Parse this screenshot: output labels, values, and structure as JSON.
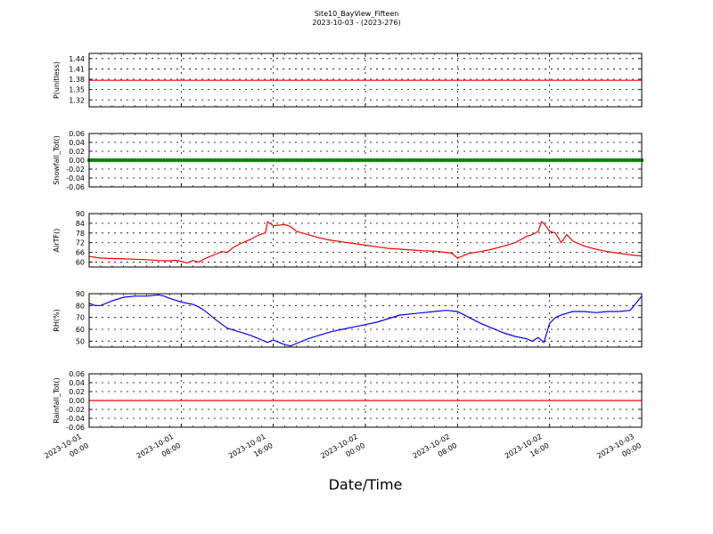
{
  "title": "Site10_BayView_Fifteen",
  "subtitle": "2023-10-03 - (2023-276)",
  "xlabel": "Date/Time",
  "x_ticks": [
    {
      "line1": "2023-10-01",
      "line2": "00:00",
      "hour": 0
    },
    {
      "line1": "2023-10-01",
      "line2": "08:00",
      "hour": 8
    },
    {
      "line1": "2023-10-01",
      "line2": "16:00",
      "hour": 16
    },
    {
      "line1": "2023-10-02",
      "line2": "00:00",
      "hour": 24
    },
    {
      "line1": "2023-10-02",
      "line2": "08:00",
      "hour": 32
    },
    {
      "line1": "2023-10-02",
      "line2": "16:00",
      "hour": 40
    },
    {
      "line1": "2023-10-03",
      "line2": "00:00",
      "hour": 48
    }
  ],
  "chart_data": [
    {
      "type": "line",
      "ylabel": "P(unitless)",
      "ylim": [
        1.3,
        1.455
      ],
      "yticks": [
        "1.44",
        "1.41",
        "1.38",
        "1.35",
        "1.32"
      ],
      "ytick_values": [
        1.44,
        1.41,
        1.38,
        1.35,
        1.32
      ],
      "color": "#ff0000",
      "marker": false,
      "grid": true,
      "x": [
        0,
        48
      ],
      "y": [
        1.377,
        1.377
      ]
    },
    {
      "type": "line",
      "ylabel": "Snowfall_Tot()",
      "ylim": [
        -0.06,
        0.06
      ],
      "yticks": [
        "0.06",
        "0.04",
        "0.02",
        "0.00",
        "-0.02",
        "-0.04",
        "-0.06"
      ],
      "ytick_values": [
        0.06,
        0.04,
        0.02,
        0.0,
        -0.02,
        -0.04,
        -0.06
      ],
      "color": "#008000",
      "marker": true,
      "grid": true,
      "x": [
        0,
        48
      ],
      "y": [
        0.0,
        0.0
      ]
    },
    {
      "type": "line",
      "ylabel": "AirTF()",
      "ylim": [
        57,
        90
      ],
      "yticks": [
        "90",
        "84",
        "78",
        "72",
        "66",
        "60"
      ],
      "ytick_values": [
        90,
        84,
        78,
        72,
        66,
        60
      ],
      "color": "#ff0000",
      "marker": false,
      "grid": true,
      "x": [
        0,
        1,
        2,
        3,
        4,
        5,
        6,
        7,
        7.5,
        8,
        8.5,
        9,
        9.5,
        10,
        10.5,
        11,
        11.5,
        12,
        12.5,
        13,
        13.5,
        14,
        14.5,
        15,
        15.3,
        15.5,
        16,
        17,
        17.5,
        18,
        19,
        20,
        21,
        22,
        23,
        24,
        25,
        26,
        27,
        28,
        29,
        30,
        31,
        31.5,
        32,
        32.5,
        33,
        34,
        35,
        36,
        37,
        37.5,
        38,
        38.5,
        39,
        39.3,
        39.5,
        40,
        40.5,
        41,
        41.5,
        42,
        43,
        44,
        45,
        46,
        47,
        48
      ],
      "y": [
        63.5,
        62.5,
        62.2,
        62,
        61.8,
        61.5,
        61,
        60.8,
        61.2,
        60.5,
        59.5,
        61,
        60,
        62,
        63.5,
        65,
        66.5,
        66,
        69,
        71,
        72.5,
        74,
        76,
        77.5,
        78,
        85,
        82.5,
        83.2,
        82,
        79,
        77,
        75,
        73.5,
        72.5,
        71.5,
        70.5,
        69.5,
        68.5,
        68,
        67.5,
        67,
        66.8,
        66,
        65.5,
        62.5,
        64,
        65.5,
        66.5,
        68,
        70,
        72,
        74,
        76,
        77,
        79,
        85,
        84,
        79,
        78,
        72,
        77,
        73,
        70,
        68,
        66.5,
        65.5,
        64.5,
        63.8
      ]
    },
    {
      "type": "line",
      "ylabel": "RH(%)",
      "ylim": [
        45,
        90
      ],
      "yticks": [
        "90",
        "80",
        "70",
        "60",
        "50"
      ],
      "ytick_values": [
        90,
        80,
        70,
        60,
        50
      ],
      "color": "#0000ff",
      "marker": false,
      "grid": true,
      "x": [
        0,
        0.5,
        1,
        2,
        3,
        4,
        5,
        6,
        6.5,
        7,
        8,
        9,
        9.5,
        10,
        11,
        12,
        13,
        14,
        14.5,
        15,
        15.5,
        16,
        16.5,
        17,
        17.5,
        18,
        19,
        20,
        21,
        22,
        23,
        24,
        25,
        26,
        27,
        28,
        29,
        30,
        31,
        32,
        33,
        34,
        35,
        36,
        37,
        38,
        38.5,
        39,
        39.5,
        40,
        40.5,
        41,
        42,
        43,
        44,
        45,
        46,
        47,
        48
      ],
      "y": [
        82,
        80,
        80,
        84,
        87,
        88,
        88,
        89,
        88,
        86,
        83,
        81,
        79,
        76,
        68,
        61,
        58,
        55,
        53,
        51,
        49,
        51,
        49,
        47,
        46,
        48,
        52,
        55,
        58,
        60,
        62,
        64,
        66,
        69,
        72,
        73,
        74,
        75,
        76,
        75,
        70,
        65,
        61,
        57,
        54,
        52,
        50,
        53,
        49,
        65,
        70,
        72,
        75,
        75,
        74,
        75,
        75,
        76,
        88
      ]
    },
    {
      "type": "line",
      "ylabel": "Rainfall_Tot()",
      "ylim": [
        -0.06,
        0.06
      ],
      "yticks": [
        "0.06",
        "0.04",
        "0.02",
        "0.00",
        "-0.02",
        "-0.04",
        "-0.06"
      ],
      "ytick_values": [
        0.06,
        0.04,
        0.02,
        0.0,
        -0.02,
        -0.04,
        -0.06
      ],
      "color": "#ff0000",
      "marker": false,
      "grid": true,
      "x": [
        0,
        48
      ],
      "y": [
        0.0,
        0.0
      ]
    }
  ]
}
